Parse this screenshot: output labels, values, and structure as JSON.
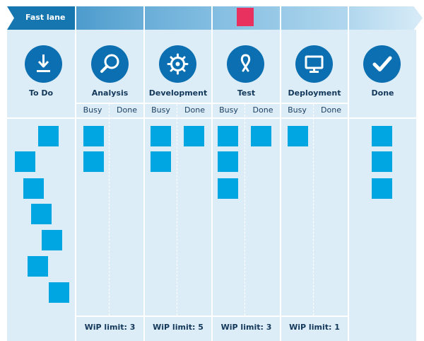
{
  "fast_lane": {
    "label": "Fast lane"
  },
  "columns": [
    {
      "title": "To Do",
      "icon": "download-icon"
    },
    {
      "title": "Analysis",
      "icon": "magnifier-icon",
      "busy": "Busy",
      "done": "Done",
      "wip": "WiP limit: 3"
    },
    {
      "title": "Development",
      "icon": "gear-icon",
      "busy": "Busy",
      "done": "Done",
      "wip": "WiP limit: 5"
    },
    {
      "title": "Test",
      "icon": "ribbon-icon",
      "busy": "Busy",
      "done": "Done",
      "wip": "WiP limit: 3"
    },
    {
      "title": "Deployment",
      "icon": "monitor-icon",
      "busy": "Busy",
      "done": "Done",
      "wip": "WiP limit: 1"
    },
    {
      "title": "Done",
      "icon": "checkmark-icon"
    }
  ],
  "colors": {
    "column_bg": "#dcedf8",
    "card": "#00a6e2",
    "icon_circle": "#0c6fb1",
    "fast_lane_card": "#e8315e",
    "fast_lane_dark": "#1576b0",
    "text": "#13385a"
  }
}
